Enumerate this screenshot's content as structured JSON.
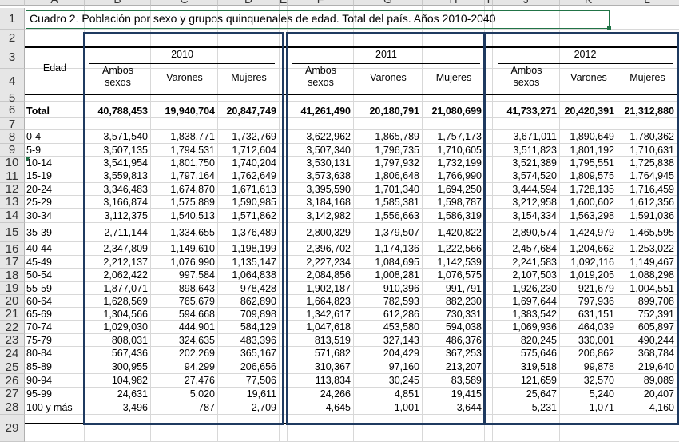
{
  "sheet": {
    "columns": [
      "A",
      "B",
      "C",
      "D",
      "E",
      "F",
      "G",
      "H",
      "I",
      "J",
      "K",
      "L",
      "M"
    ],
    "rows": [
      "1",
      "2",
      "3",
      "4",
      "5",
      "6",
      "7",
      "8",
      "9",
      "10",
      "11",
      "12",
      "13",
      "14",
      "15",
      "16",
      "17",
      "18",
      "19",
      "20",
      "21",
      "22",
      "23",
      "24",
      "25",
      "26",
      "27",
      "28",
      "29"
    ]
  },
  "title": "Cuadro 2. Población por sexo y grupos quinquenales de edad. Total del país. Años 2010-2040",
  "header": {
    "edad": "Edad",
    "years": [
      "2010",
      "2011",
      "2012"
    ],
    "sub": {
      "ambos1": "Ambos",
      "ambos2": "sexos",
      "varones": "Varones",
      "mujeres": "Mujeres"
    }
  },
  "total": {
    "label": "Total",
    "values": [
      "40,788,453",
      "19,940,704",
      "20,847,749",
      "41,261,490",
      "20,180,791",
      "21,080,699",
      "41,733,271",
      "20,420,391",
      "21,312,880"
    ]
  },
  "rows": [
    {
      "age": "0-4",
      "values": [
        "3,571,540",
        "1,838,771",
        "1,732,769",
        "3,622,962",
        "1,865,789",
        "1,757,173",
        "3,671,011",
        "1,890,649",
        "1,780,362"
      ]
    },
    {
      "age": "5-9",
      "values": [
        "3,507,135",
        "1,794,531",
        "1,712,604",
        "3,507,340",
        "1,796,735",
        "1,710,605",
        "3,511,823",
        "1,801,192",
        "1,710,631"
      ]
    },
    {
      "age": "10-14",
      "values": [
        "3,541,954",
        "1,801,750",
        "1,740,204",
        "3,530,131",
        "1,797,932",
        "1,732,199",
        "3,521,389",
        "1,795,551",
        "1,725,838"
      ]
    },
    {
      "age": "15-19",
      "values": [
        "3,559,813",
        "1,797,164",
        "1,762,649",
        "3,573,638",
        "1,806,648",
        "1,766,990",
        "3,574,520",
        "1,809,575",
        "1,764,945"
      ]
    },
    {
      "age": "20-24",
      "values": [
        "3,346,483",
        "1,674,870",
        "1,671,613",
        "3,395,590",
        "1,701,340",
        "1,694,250",
        "3,444,594",
        "1,728,135",
        "1,716,459"
      ]
    },
    {
      "age": "25-29",
      "values": [
        "3,166,874",
        "1,575,889",
        "1,590,985",
        "3,184,168",
        "1,585,381",
        "1,598,787",
        "3,212,958",
        "1,600,602",
        "1,612,356"
      ]
    },
    {
      "age": "30-34",
      "values": [
        "3,112,375",
        "1,540,513",
        "1,571,862",
        "3,142,982",
        "1,556,663",
        "1,586,319",
        "3,154,334",
        "1,563,298",
        "1,591,036"
      ]
    },
    {
      "age": "35-39",
      "values": [
        "2,711,144",
        "1,334,655",
        "1,376,489",
        "2,800,329",
        "1,379,507",
        "1,420,822",
        "2,890,574",
        "1,424,979",
        "1,465,595"
      ]
    },
    {
      "age": "40-44",
      "values": [
        "2,347,809",
        "1,149,610",
        "1,198,199",
        "2,396,702",
        "1,174,136",
        "1,222,566",
        "2,457,684",
        "1,204,662",
        "1,253,022"
      ]
    },
    {
      "age": "45-49",
      "values": [
        "2,212,137",
        "1,076,990",
        "1,135,147",
        "2,227,234",
        "1,084,695",
        "1,142,539",
        "2,241,583",
        "1,092,116",
        "1,149,467"
      ]
    },
    {
      "age": "50-54",
      "values": [
        "2,062,422",
        "997,584",
        "1,064,838",
        "2,084,856",
        "1,008,281",
        "1,076,575",
        "2,107,503",
        "1,019,205",
        "1,088,298"
      ]
    },
    {
      "age": "55-59",
      "values": [
        "1,877,071",
        "898,643",
        "978,428",
        "1,902,187",
        "910,396",
        "991,791",
        "1,926,230",
        "921,679",
        "1,004,551"
      ]
    },
    {
      "age": "60-64",
      "values": [
        "1,628,569",
        "765,679",
        "862,890",
        "1,664,823",
        "782,593",
        "882,230",
        "1,697,644",
        "797,936",
        "899,708"
      ]
    },
    {
      "age": "65-69",
      "values": [
        "1,304,566",
        "594,668",
        "709,898",
        "1,342,617",
        "612,286",
        "730,331",
        "1,383,542",
        "631,151",
        "752,391"
      ]
    },
    {
      "age": "70-74",
      "values": [
        "1,029,030",
        "444,901",
        "584,129",
        "1,047,618",
        "453,580",
        "594,038",
        "1,069,936",
        "464,039",
        "605,897"
      ]
    },
    {
      "age": "75-79",
      "values": [
        "808,031",
        "324,635",
        "483,396",
        "813,519",
        "327,143",
        "486,376",
        "820,245",
        "330,001",
        "490,244"
      ]
    },
    {
      "age": "80-84",
      "values": [
        "567,436",
        "202,269",
        "365,167",
        "571,682",
        "204,429",
        "367,253",
        "575,646",
        "206,862",
        "368,784"
      ]
    },
    {
      "age": "85-89",
      "values": [
        "300,955",
        "94,299",
        "206,656",
        "310,367",
        "97,160",
        "213,207",
        "319,518",
        "99,878",
        "219,640"
      ]
    },
    {
      "age": "90-94",
      "values": [
        "104,982",
        "27,476",
        "77,506",
        "113,834",
        "30,245",
        "83,589",
        "121,659",
        "32,570",
        "89,089"
      ]
    },
    {
      "age": "95-99",
      "values": [
        "24,631",
        "5,020",
        "19,611",
        "24,266",
        "4,851",
        "19,415",
        "25,647",
        "5,240",
        "20,407"
      ]
    },
    {
      "age": "100 y más",
      "values": [
        "3,496",
        "787",
        "2,709",
        "4,645",
        "1,001",
        "3,644",
        "5,231",
        "1,071",
        "4,160"
      ]
    }
  ]
}
